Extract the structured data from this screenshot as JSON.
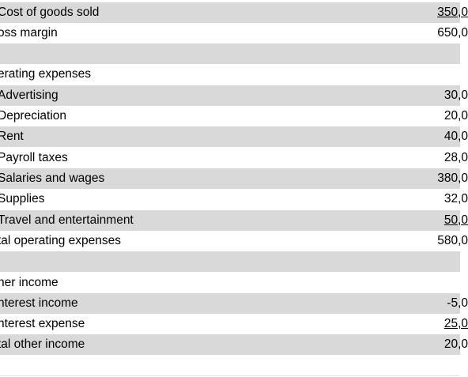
{
  "rows": [
    {
      "label": "Cost of goods sold",
      "value": "350,0",
      "underline": true
    },
    {
      "label": "oss margin",
      "value": "650,0",
      "underline": false
    },
    {
      "label": "",
      "value": "",
      "underline": false
    },
    {
      "label": "erating expenses",
      "value": "",
      "underline": false
    },
    {
      "label": "Advertising",
      "value": "30,0",
      "underline": false
    },
    {
      "label": "Depreciation",
      "value": "20,0",
      "underline": false
    },
    {
      "label": "Rent",
      "value": "40,0",
      "underline": false
    },
    {
      "label": "Payroll taxes",
      "value": "28,0",
      "underline": false
    },
    {
      "label": "Salaries and wages",
      "value": "380,0",
      "underline": false
    },
    {
      "label": "Supplies",
      "value": "32,0",
      "underline": false
    },
    {
      "label": "Travel and entertainment",
      "value": "50,0",
      "underline": true
    },
    {
      "label": "tal operating expenses",
      "value": "580,0",
      "underline": false
    },
    {
      "label": "",
      "value": "",
      "underline": false
    },
    {
      "label": "ner income",
      "value": "",
      "underline": false
    },
    {
      "label": "nterest income",
      "value": "-5,0",
      "underline": false
    },
    {
      "label": "nterest expense",
      "value": "25,0",
      "underline": true
    },
    {
      "label": "tal other income",
      "value": "20,0",
      "underline": false
    }
  ]
}
